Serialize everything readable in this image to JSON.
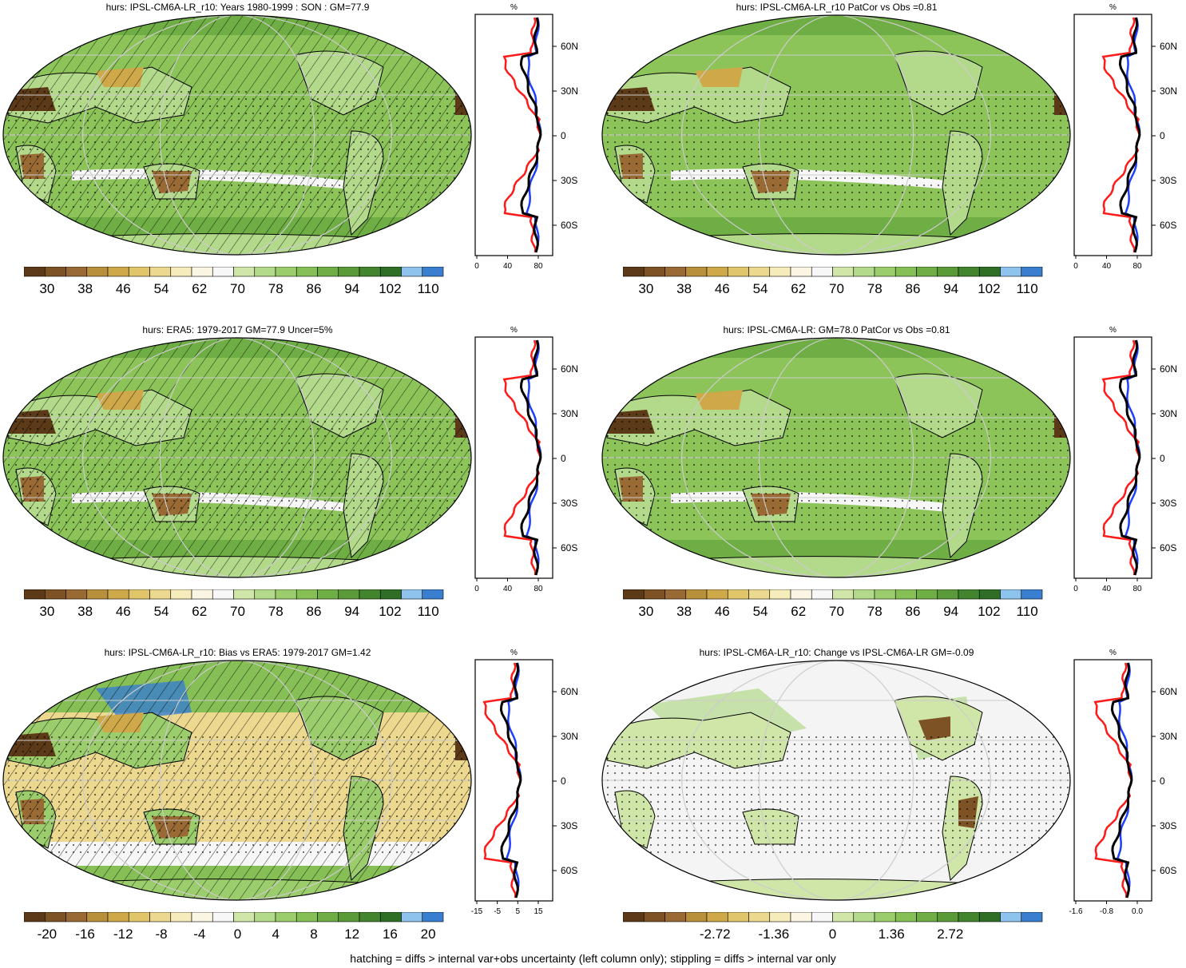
{
  "footnote": "hatching = diffs > internal var+obs uncertainty (left column only); stippling = diffs > internal var only",
  "lat_labels": [
    "60N",
    "30N",
    "0",
    "30S",
    "60S"
  ],
  "profile_unit": "%",
  "colors": {
    "ocean_green": "#8cc45a",
    "land_brown": "#8a5a2c",
    "blue_line": "#1f3fff",
    "red_line": "#ff1a1a",
    "black_line": "#000000"
  },
  "colorbar_colors": [
    "#5c3a17",
    "#7d5224",
    "#9a6a35",
    "#b88f3a",
    "#cfa84a",
    "#e0c56a",
    "#ecd98f",
    "#f5ebbb",
    "#fbf6e3",
    "#f7f7f7",
    "#cfe6a8",
    "#b3d98a",
    "#9ccd6c",
    "#86bf55",
    "#6fae45",
    "#5a9a38",
    "#43842e",
    "#2e6e25",
    "#8dc3ec",
    "#3a7ecf"
  ],
  "panels": [
    {
      "title": "hurs: IPSL-CM6A-LR_r10: Years 1980-1999 : SON : GM=77.9",
      "colorbar_labels": [
        "30",
        "38",
        "46",
        "54",
        "62",
        "70",
        "78",
        "86",
        "94",
        "102",
        "110"
      ],
      "profile_ticks": [
        "0",
        "40",
        "80"
      ],
      "hatch": true,
      "stipple": true,
      "mode": "abs"
    },
    {
      "title": "hurs: IPSL-CM6A-LR_r10 PatCor vs Obs =0.81",
      "colorbar_labels": [
        "30",
        "38",
        "46",
        "54",
        "62",
        "70",
        "78",
        "86",
        "94",
        "102",
        "110"
      ],
      "profile_ticks": [
        "0",
        "40",
        "80"
      ],
      "hatch": false,
      "stipple": true,
      "mode": "abs"
    },
    {
      "title": "hurs: ERA5: 1979-2017 GM=77.9 Uncer=5%",
      "colorbar_labels": [
        "30",
        "38",
        "46",
        "54",
        "62",
        "70",
        "78",
        "86",
        "94",
        "102",
        "110"
      ],
      "profile_ticks": [
        "0",
        "40",
        "80"
      ],
      "hatch": true,
      "stipple": true,
      "mode": "abs"
    },
    {
      "title": "hurs: IPSL-CM6A-LR: GM=78.0 PatCor vs Obs =0.81",
      "colorbar_labels": [
        "30",
        "38",
        "46",
        "54",
        "62",
        "70",
        "78",
        "86",
        "94",
        "102",
        "110"
      ],
      "profile_ticks": [
        "0",
        "40",
        "80"
      ],
      "hatch": false,
      "stipple": true,
      "mode": "abs"
    },
    {
      "title": "hurs: IPSL-CM6A-LR_r10: Bias vs ERA5: 1979-2017  GM=1.42",
      "colorbar_labels": [
        "-20",
        "-16",
        "-12",
        "-8",
        "-4",
        "0",
        "4",
        "8",
        "12",
        "16",
        "20"
      ],
      "profile_ticks": [
        "-15",
        "-5",
        "5",
        "15"
      ],
      "hatch": true,
      "stipple": true,
      "mode": "bias"
    },
    {
      "title": "hurs: IPSL-CM6A-LR_r10: Change vs IPSL-CM6A-LR GM=-0.09",
      "colorbar_labels": [
        "-2.72",
        "-1.36",
        "0",
        "1.36",
        "2.72"
      ],
      "profile_ticks": [
        "-1.6",
        "-0.8",
        "0.0"
      ],
      "hatch": false,
      "stipple": true,
      "mode": "change"
    }
  ]
}
